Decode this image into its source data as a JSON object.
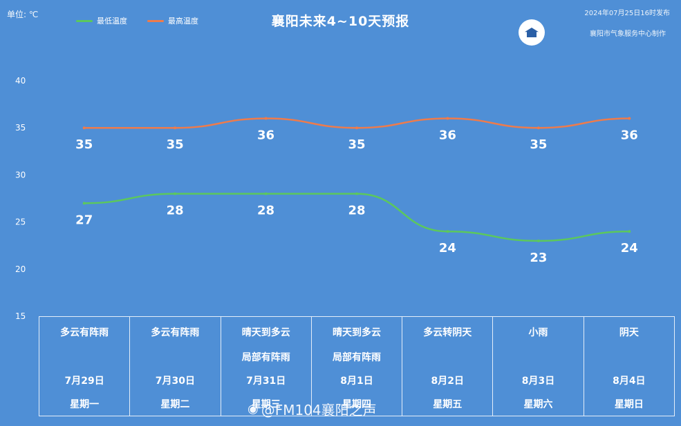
{
  "header": {
    "unit": "单位: ℃",
    "title": "襄阳未来4~10天预报",
    "issued": "2024年07月25日16时发布",
    "org": "襄阳市气象服务中心制作"
  },
  "chart_data": {
    "type": "line",
    "title": "襄阳未来4~10天预报",
    "categories": [
      "7月29日",
      "7月30日",
      "7月31日",
      "8月1日",
      "8月2日",
      "8月3日",
      "8月4日"
    ],
    "series": [
      {
        "name": "最低温度",
        "color": "#5cc85c",
        "values": [
          27,
          28,
          28,
          28,
          24,
          23,
          24
        ]
      },
      {
        "name": "最高温度",
        "color": "#f07b4a",
        "values": [
          35,
          35,
          36,
          35,
          36,
          35,
          36
        ]
      }
    ],
    "yticks": [
      15,
      20,
      25,
      30,
      35,
      40
    ],
    "ylim": [
      15,
      40
    ],
    "grid": false,
    "legend": "top-left"
  },
  "forecast": {
    "days": [
      {
        "weather1": "多云有阵雨",
        "weather2": "",
        "date": "7月29日",
        "weekday": "星期一"
      },
      {
        "weather1": "多云有阵雨",
        "weather2": "",
        "date": "7月30日",
        "weekday": "星期二"
      },
      {
        "weather1": "晴天到多云",
        "weather2": "局部有阵雨",
        "date": "7月31日",
        "weekday": "星期三"
      },
      {
        "weather1": "晴天到多云",
        "weather2": "局部有阵雨",
        "date": "8月1日",
        "weekday": "星期四"
      },
      {
        "weather1": "多云转阴天",
        "weather2": "",
        "date": "8月2日",
        "weekday": "星期五"
      },
      {
        "weather1": "小雨",
        "weather2": "",
        "date": "8月3日",
        "weekday": "星期六"
      },
      {
        "weather1": "阴天",
        "weather2": "",
        "date": "8月4日",
        "weekday": "星期日"
      }
    ]
  },
  "watermark": {
    "icon": "weibo-icon",
    "text": "@FM104襄阳之声"
  }
}
